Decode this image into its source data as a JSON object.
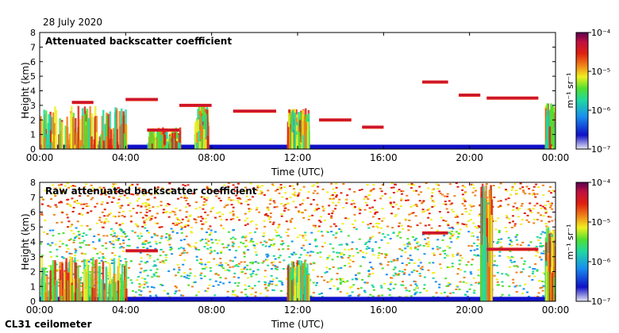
{
  "date_label": "28 July 2020",
  "instrument_label": "CL31 ceilometer",
  "units_label": "m⁻¹ sr⁻¹",
  "chart_data": [
    {
      "type": "heatmap",
      "title": "Attenuated backscatter coefficient",
      "xlabel": "Time (UTC)",
      "ylabel": "Height (km)",
      "x_ticks": [
        "00:00",
        "04:00",
        "08:00",
        "12:00",
        "16:00",
        "20:00",
        "00:00"
      ],
      "xlim_hours": [
        0,
        24
      ],
      "ylim": [
        0,
        8
      ],
      "y_ticks": [
        0,
        1,
        2,
        3,
        4,
        5,
        6,
        7,
        8
      ],
      "colorbar": {
        "scale": "log",
        "min": "10⁻⁷",
        "max": "10⁻⁴",
        "ticks": [
          "10⁻⁴",
          "10⁻⁵",
          "10⁻⁶",
          "10⁻⁷"
        ],
        "label": "m⁻¹ sr⁻¹"
      },
      "colorbar_colors": [
        "#e8e8f4",
        "#1010c8",
        "#1890f0",
        "#20d8a0",
        "#50e030",
        "#f0f020",
        "#f08018",
        "#e02010",
        "#c01040",
        "#580050"
      ],
      "features": {
        "boundary_layer": {
          "height_km": 0.3
        },
        "low_cloud_columns": [
          {
            "start_h": 0.0,
            "end_h": 4.0,
            "top_km": 3.0
          },
          {
            "start_h": 5.0,
            "end_h": 6.5,
            "top_km": 1.5
          },
          {
            "start_h": 7.2,
            "end_h": 7.8,
            "top_km": 3.0
          },
          {
            "start_h": 11.5,
            "end_h": 12.5,
            "top_km": 2.8
          },
          {
            "start_h": 23.5,
            "end_h": 24.0,
            "top_km": 3.2
          }
        ],
        "cloud_layers": [
          {
            "start_h": 1.5,
            "end_h": 2.5,
            "height_km": 3.2
          },
          {
            "start_h": 4.0,
            "end_h": 5.5,
            "height_km": 3.4
          },
          {
            "start_h": 5.0,
            "end_h": 6.5,
            "height_km": 1.3
          },
          {
            "start_h": 6.5,
            "end_h": 8.0,
            "height_km": 3.0
          },
          {
            "start_h": 9.0,
            "end_h": 11.0,
            "height_km": 2.6
          },
          {
            "start_h": 13.0,
            "end_h": 14.5,
            "height_km": 2.0
          },
          {
            "start_h": 15.0,
            "end_h": 16.0,
            "height_km": 1.5
          },
          {
            "start_h": 17.8,
            "end_h": 19.0,
            "height_km": 4.6
          },
          {
            "start_h": 19.5,
            "end_h": 20.5,
            "height_km": 3.7
          },
          {
            "start_h": 20.8,
            "end_h": 23.2,
            "height_km": 3.5
          }
        ]
      }
    },
    {
      "type": "heatmap",
      "title": "Raw attenuated backscatter coefficient",
      "xlabel": "Time (UTC)",
      "ylabel": "Height (km)",
      "x_ticks": [
        "00:00",
        "04:00",
        "08:00",
        "12:00",
        "16:00",
        "20:00",
        "00:00"
      ],
      "xlim_hours": [
        0,
        24
      ],
      "ylim": [
        0,
        8
      ],
      "y_ticks": [
        0,
        1,
        2,
        3,
        4,
        5,
        6,
        7,
        8
      ],
      "colorbar": {
        "scale": "log",
        "min": "10⁻⁷",
        "max": "10⁻⁴",
        "ticks": [
          "10⁻⁴",
          "10⁻⁵",
          "10⁻⁶",
          "10⁻⁷"
        ],
        "label": "m⁻¹ sr⁻¹"
      },
      "colorbar_colors": [
        "#e8e8f4",
        "#1010c8",
        "#1890f0",
        "#20d8a0",
        "#50e030",
        "#f0f020",
        "#f08018",
        "#e02010",
        "#c01040",
        "#580050"
      ],
      "features": {
        "noise_background": true,
        "boundary_layer": {
          "height_km": 0.3
        },
        "low_cloud_columns": [
          {
            "start_h": 0.0,
            "end_h": 4.0,
            "top_km": 3.0
          },
          {
            "start_h": 11.5,
            "end_h": 12.5,
            "top_km": 2.8
          },
          {
            "start_h": 20.5,
            "end_h": 21.0,
            "top_km": 8.0
          },
          {
            "start_h": 23.5,
            "end_h": 24.0,
            "top_km": 5.0
          }
        ],
        "cloud_layers": [
          {
            "start_h": 4.0,
            "end_h": 5.5,
            "height_km": 3.4
          },
          {
            "start_h": 17.8,
            "end_h": 19.0,
            "height_km": 4.6
          },
          {
            "start_h": 20.8,
            "end_h": 23.2,
            "height_km": 3.5
          }
        ]
      }
    }
  ]
}
